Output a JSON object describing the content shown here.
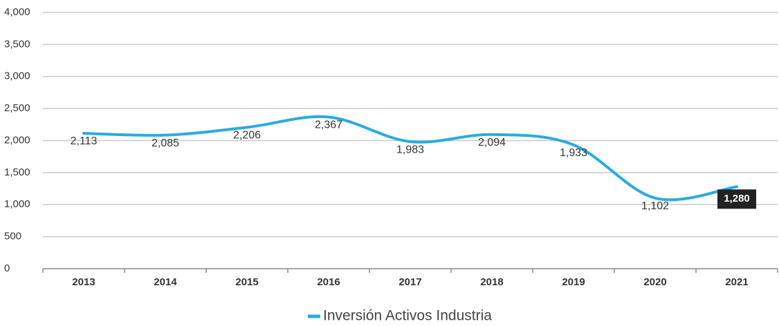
{
  "chart_data": {
    "type": "line",
    "categories": [
      "2013",
      "2014",
      "2015",
      "2016",
      "2017",
      "2018",
      "2019",
      "2020",
      "2021"
    ],
    "series": [
      {
        "name": "Inversión Activos Industria",
        "color": "#29abe2",
        "values": [
          2113,
          2085,
          2206,
          2367,
          1983,
          2094,
          1933,
          1102,
          1280
        ],
        "value_labels": [
          "2,113",
          "2,085",
          "2,206",
          "2,367",
          "1,983",
          "2,094",
          "1,933",
          "1,102",
          "1,280"
        ]
      }
    ],
    "ylim": [
      0,
      4000
    ],
    "yticks": [
      0,
      500,
      {
        "value": 1000,
        "label": "1,000"
      },
      {
        "value": 1500,
        "label": "1,500"
      },
      {
        "value": 2000,
        "label": "2,000"
      },
      {
        "value": 2500,
        "label": "2,500"
      },
      {
        "value": 3000,
        "label": "3,000"
      },
      {
        "value": 3500,
        "label": "3,500"
      },
      {
        "value": 4000,
        "label": "4,000"
      }
    ],
    "grid": true,
    "legend": "bottom"
  }
}
